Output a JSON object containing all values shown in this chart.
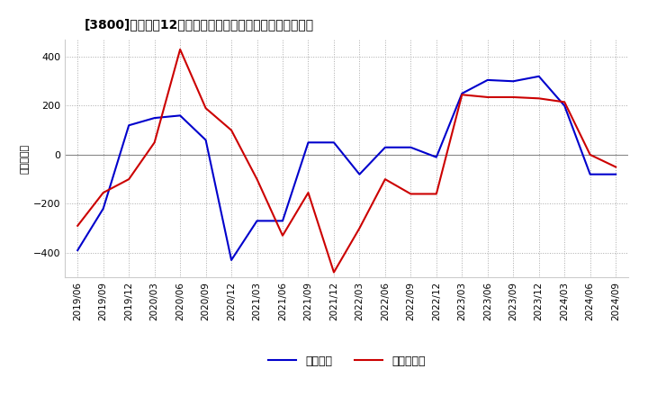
{
  "title": "[3800]　利益だ12か月移動合計の対前年同期増減額の推移",
  "ylabel": "（百万円）",
  "x_labels": [
    "2019/06",
    "2019/09",
    "2019/12",
    "2020/03",
    "2020/06",
    "2020/09",
    "2020/12",
    "2021/03",
    "2021/06",
    "2021/09",
    "2021/12",
    "2022/03",
    "2022/06",
    "2022/09",
    "2022/12",
    "2023/03",
    "2023/06",
    "2023/09",
    "2023/12",
    "2024/03",
    "2024/06",
    "2024/09"
  ],
  "keijo_rieki": [
    -390,
    -220,
    120,
    150,
    160,
    60,
    -430,
    -270,
    -270,
    50,
    50,
    -80,
    30,
    30,
    -10,
    250,
    305,
    300,
    320,
    200,
    -80,
    -80
  ],
  "touki_junrieki": [
    -290,
    -155,
    -100,
    50,
    430,
    190,
    100,
    -100,
    -330,
    -155,
    -480,
    -300,
    -100,
    -160,
    -160,
    245,
    235,
    235,
    230,
    215,
    0,
    -50
  ],
  "keijo_color": "#0000cc",
  "touki_color": "#cc0000",
  "ylim": [
    -500,
    470
  ],
  "yticks": [
    -400,
    -200,
    0,
    200,
    400
  ],
  "bg_color": "#ffffff",
  "grid_color": "#aaaaaa",
  "legend_keijo": "経常利益",
  "legend_touki": "当期純利益"
}
